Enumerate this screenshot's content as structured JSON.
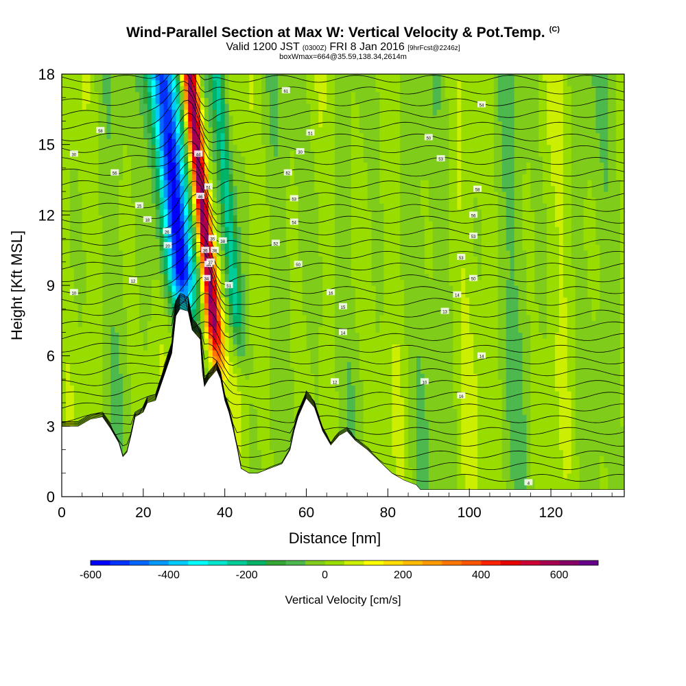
{
  "header": {
    "title": "Wind-Parallel Section at Max W: Vertical Velocity & Pot.Temp.",
    "copyright": "(C)",
    "valid_prefix": "Valid 1200 JST",
    "valid_utc": "(0300Z)",
    "valid_date": "FRI 8 Jan 2016",
    "forecast": "[9hrFcst@2246z]",
    "box_info": "boxWmax=664@35.59,138.34,2614m"
  },
  "chart_data": {
    "type": "heatmap",
    "xlabel": "Distance [nm]",
    "ylabel": "Height [Kft MSL]",
    "xlim": [
      0,
      138
    ],
    "ylim": [
      0,
      18
    ],
    "x_ticks": [
      0,
      20,
      40,
      60,
      80,
      100,
      120
    ],
    "y_ticks": [
      0,
      3,
      6,
      9,
      12,
      15,
      18
    ],
    "colorbar": {
      "label": "Vertical Velocity [cm/s]",
      "range": [
        -600,
        700
      ],
      "step": 50,
      "tick_labels": [
        -600,
        -400,
        -200,
        0,
        200,
        400,
        600
      ],
      "colors": [
        "#0000ff",
        "#0033ff",
        "#0066ff",
        "#0099ff",
        "#00ccff",
        "#00ffff",
        "#00e6cc",
        "#00cc99",
        "#00b366",
        "#33a633",
        "#4db84d",
        "#80cc1a",
        "#99dd00",
        "#ccee00",
        "#ffff00",
        "#ffdd00",
        "#ffbb00",
        "#ff9900",
        "#ff7700",
        "#ff5500",
        "#ff2200",
        "#e60000",
        "#cc0033",
        "#a80050",
        "#880066",
        "#660088"
      ]
    },
    "terrain_profile_kft": [
      [
        0,
        3.0
      ],
      [
        4,
        3.0
      ],
      [
        7,
        3.3
      ],
      [
        10,
        3.4
      ],
      [
        12,
        2.9
      ],
      [
        14,
        2.3
      ],
      [
        15,
        1.7
      ],
      [
        16,
        1.9
      ],
      [
        17,
        2.6
      ],
      [
        18,
        3.4
      ],
      [
        20,
        3.6
      ],
      [
        21,
        4.0
      ],
      [
        23,
        4.1
      ],
      [
        25,
        5.1
      ],
      [
        27,
        6.1
      ],
      [
        28,
        7.7
      ],
      [
        29,
        8.0
      ],
      [
        31,
        7.9
      ],
      [
        32,
        7.1
      ],
      [
        34,
        6.7
      ],
      [
        34.5,
        5.3
      ],
      [
        35,
        4.7
      ],
      [
        36,
        5.0
      ],
      [
        38,
        5.4
      ],
      [
        39,
        5.0
      ],
      [
        40,
        4.1
      ],
      [
        41,
        3.6
      ],
      [
        42,
        2.9
      ],
      [
        43,
        2.1
      ],
      [
        44,
        1.2
      ],
      [
        46,
        1.0
      ],
      [
        48,
        1.0
      ],
      [
        51,
        1.2
      ],
      [
        54,
        1.4
      ],
      [
        56,
        2.0
      ],
      [
        57,
        2.8
      ],
      [
        58,
        3.4
      ],
      [
        60,
        4.2
      ],
      [
        62,
        3.8
      ],
      [
        64,
        2.8
      ],
      [
        66,
        2.2
      ],
      [
        68,
        2.6
      ],
      [
        70,
        2.8
      ],
      [
        72,
        2.4
      ],
      [
        75,
        2.0
      ],
      [
        78,
        1.5
      ],
      [
        81,
        1.0
      ],
      [
        84,
        0.7
      ],
      [
        87,
        0.5
      ],
      [
        88,
        0.3
      ],
      [
        138,
        0.3
      ]
    ],
    "peak_vertical_velocity_cms": 664,
    "isentrope_labels": [
      {
        "text": "10",
        "x": 3,
        "y": 8.7
      },
      {
        "text": "12",
        "x": 17.5,
        "y": 9.2
      },
      {
        "text": "20",
        "x": 26,
        "y": 10.7
      },
      {
        "text": "26",
        "x": 25.8,
        "y": 11.3
      },
      {
        "text": "18",
        "x": 21,
        "y": 11.8
      },
      {
        "text": "15",
        "x": 19,
        "y": 12.4
      },
      {
        "text": "56",
        "x": 13,
        "y": 13.8
      },
      {
        "text": "30",
        "x": 3,
        "y": 14.6
      },
      {
        "text": "58",
        "x": 9.5,
        "y": 15.6
      },
      {
        "text": "44",
        "x": 33.5,
        "y": 14.6
      },
      {
        "text": "46",
        "x": 34,
        "y": 12.8
      },
      {
        "text": "51",
        "x": 36,
        "y": 13.2
      },
      {
        "text": "51",
        "x": 61,
        "y": 15.5
      },
      {
        "text": "30",
        "x": 58.5,
        "y": 14.7
      },
      {
        "text": "62",
        "x": 55.5,
        "y": 13.8
      },
      {
        "text": "53",
        "x": 57,
        "y": 12.7
      },
      {
        "text": "54",
        "x": 57,
        "y": 11.7
      },
      {
        "text": "52",
        "x": 52.5,
        "y": 10.8
      },
      {
        "text": "50",
        "x": 58,
        "y": 9.9
      },
      {
        "text": "61",
        "x": 55,
        "y": 17.3
      },
      {
        "text": "54",
        "x": 103,
        "y": 16.7
      },
      {
        "text": "50",
        "x": 90,
        "y": 15.3
      },
      {
        "text": "53",
        "x": 93,
        "y": 14.4
      },
      {
        "text": "58",
        "x": 102,
        "y": 13.1
      },
      {
        "text": "56",
        "x": 101,
        "y": 12.0
      },
      {
        "text": "53",
        "x": 101,
        "y": 11.1
      },
      {
        "text": "53",
        "x": 98,
        "y": 10.2
      },
      {
        "text": "50",
        "x": 101,
        "y": 9.3
      },
      {
        "text": "14",
        "x": 97,
        "y": 8.6
      },
      {
        "text": "16",
        "x": 66,
        "y": 8.7
      },
      {
        "text": "15",
        "x": 69,
        "y": 8.1
      },
      {
        "text": "13",
        "x": 94,
        "y": 7.9
      },
      {
        "text": "14",
        "x": 69,
        "y": 7.0
      },
      {
        "text": "14",
        "x": 103,
        "y": 6.0
      },
      {
        "text": "12",
        "x": 67,
        "y": 4.9
      },
      {
        "text": "10",
        "x": 89,
        "y": 4.9
      },
      {
        "text": "16",
        "x": 98,
        "y": 4.3
      },
      {
        "text": "4",
        "x": 114.5,
        "y": 0.6
      },
      {
        "text": "35",
        "x": 37,
        "y": 11.0
      },
      {
        "text": "36",
        "x": 35.2,
        "y": 10.5
      },
      {
        "text": "38",
        "x": 37.5,
        "y": 10.5
      },
      {
        "text": "38",
        "x": 39.5,
        "y": 10.9
      },
      {
        "text": "34",
        "x": 36,
        "y": 9.9
      },
      {
        "text": "37",
        "x": 36.5,
        "y": 10.0
      },
      {
        "text": "34",
        "x": 35.5,
        "y": 9.3
      },
      {
        "text": "51",
        "x": 41,
        "y": 9.0
      }
    ]
  }
}
